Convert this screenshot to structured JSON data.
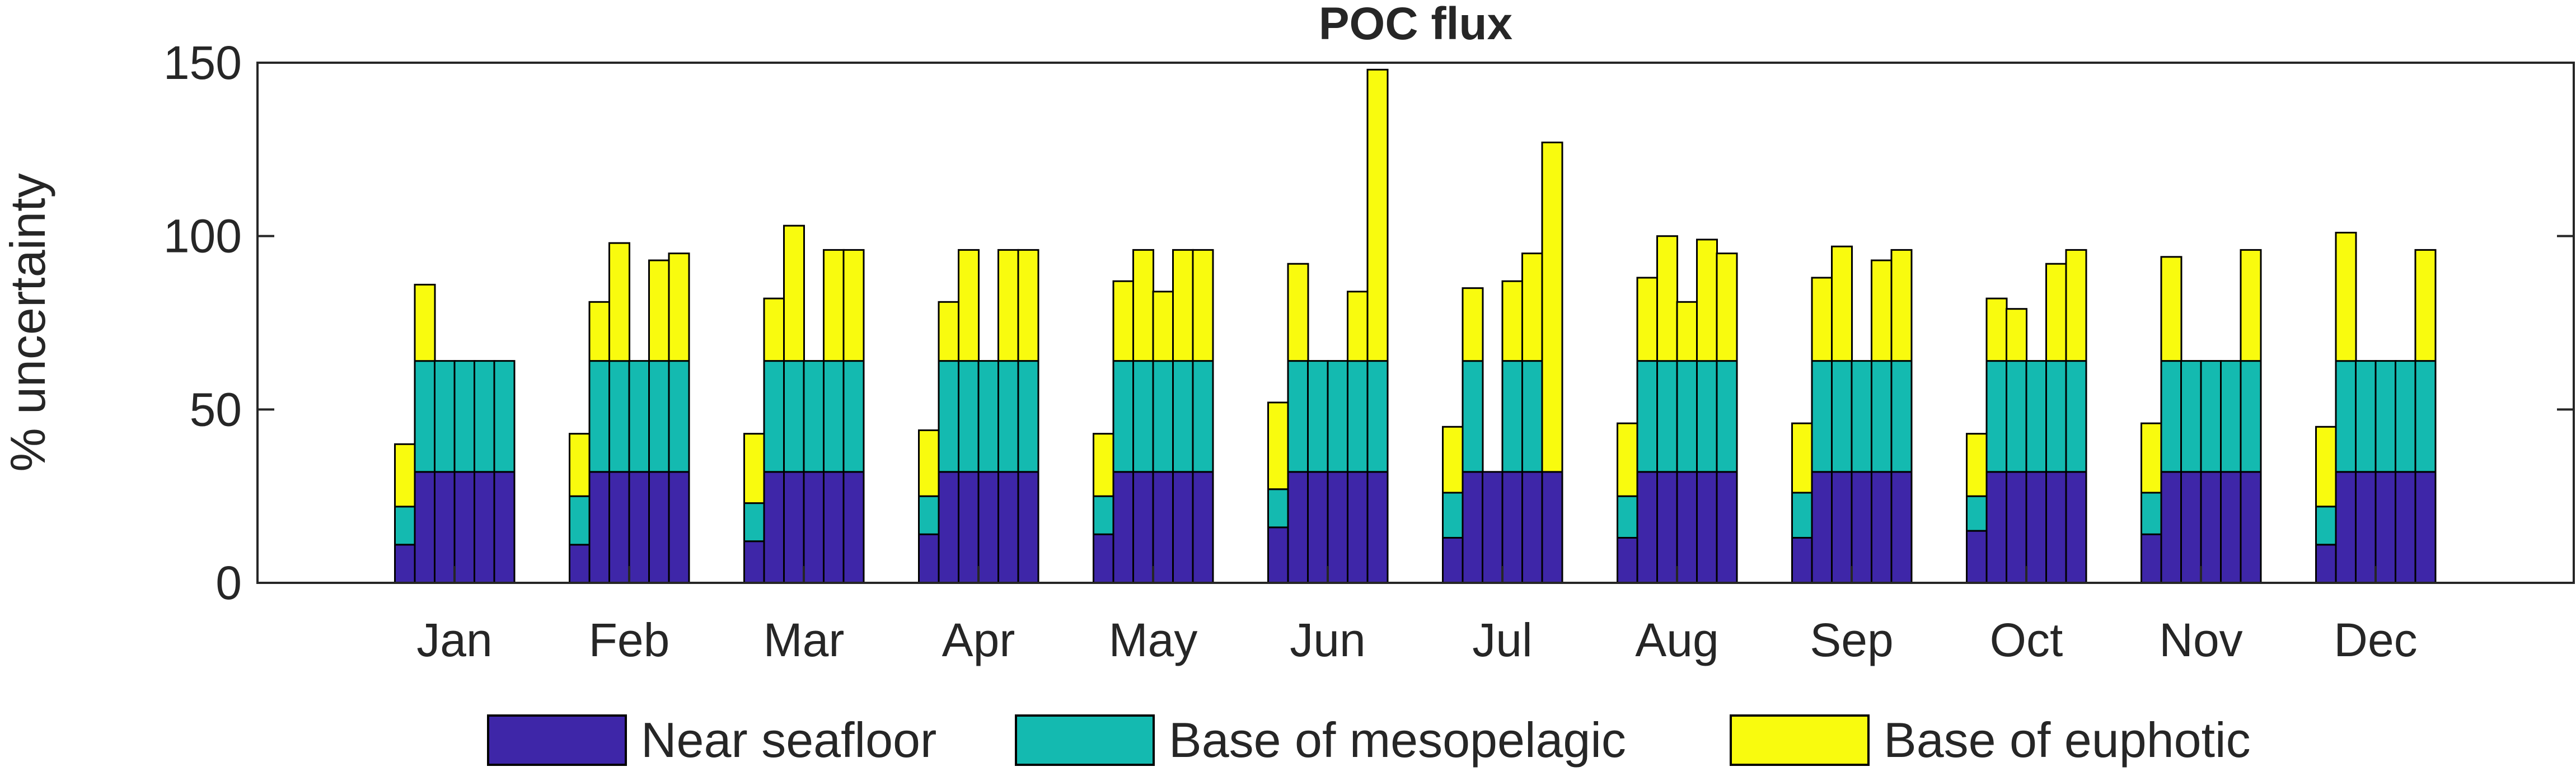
{
  "chart_data": {
    "type": "bar",
    "stacked": true,
    "title": "POC flux",
    "ylabel": "% uncertainty",
    "xlabel": "",
    "ylim": [
      0,
      150
    ],
    "yticks": [
      0,
      50,
      100,
      150
    ],
    "categories": [
      "Jan",
      "Feb",
      "Mar",
      "Apr",
      "May",
      "Jun",
      "Jul",
      "Aug",
      "Sep",
      "Oct",
      "Nov",
      "Dec"
    ],
    "bars_per_category": 6,
    "legend_position": "bottom",
    "series": [
      {
        "name": "Near seafloor",
        "color": "#3E26A8",
        "values": [
          [
            11,
            32,
            32,
            32,
            32,
            32
          ],
          [
            11,
            32,
            32,
            32,
            32,
            32
          ],
          [
            12,
            32,
            32,
            32,
            32,
            32
          ],
          [
            14,
            32,
            32,
            32,
            32,
            32
          ],
          [
            14,
            32,
            32,
            32,
            32,
            32
          ],
          [
            16,
            32,
            32,
            32,
            32,
            32
          ],
          [
            13,
            32,
            32,
            32,
            32,
            32
          ],
          [
            13,
            32,
            32,
            32,
            32,
            32
          ],
          [
            13,
            32,
            32,
            32,
            32,
            32
          ],
          [
            15,
            32,
            32,
            32,
            32,
            32
          ],
          [
            14,
            32,
            32,
            32,
            32,
            32
          ],
          [
            11,
            32,
            32,
            32,
            32,
            32
          ]
        ]
      },
      {
        "name": "Base of mesopelagic",
        "color": "#14BAB0",
        "values": [
          [
            11,
            32,
            32,
            32,
            32,
            32
          ],
          [
            14,
            32,
            32,
            32,
            32,
            32
          ],
          [
            11,
            32,
            32,
            32,
            32,
            32
          ],
          [
            11,
            32,
            32,
            32,
            32,
            32
          ],
          [
            11,
            32,
            32,
            32,
            32,
            32
          ],
          [
            11,
            32,
            32,
            32,
            32,
            32
          ],
          [
            13,
            32,
            0,
            32,
            32,
            0
          ],
          [
            12,
            32,
            32,
            32,
            32,
            32
          ],
          [
            13,
            32,
            32,
            32,
            32,
            32
          ],
          [
            10,
            32,
            32,
            32,
            32,
            32
          ],
          [
            12,
            32,
            32,
            32,
            32,
            32
          ],
          [
            11,
            32,
            32,
            32,
            32,
            32
          ]
        ]
      },
      {
        "name": "Base of euphotic",
        "color": "#F9FB0E",
        "values": [
          [
            18,
            22,
            0,
            0,
            0,
            0
          ],
          [
            18,
            17,
            34,
            0,
            29,
            31
          ],
          [
            20,
            18,
            39,
            0,
            32,
            32
          ],
          [
            19,
            17,
            32,
            0,
            32,
            32
          ],
          [
            18,
            23,
            32,
            20,
            32,
            32
          ],
          [
            25,
            28,
            0,
            0,
            20,
            84
          ],
          [
            19,
            21,
            0,
            23,
            31,
            95
          ],
          [
            21,
            24,
            36,
            17,
            35,
            31
          ],
          [
            20,
            24,
            33,
            0,
            29,
            32
          ],
          [
            18,
            18,
            15,
            0,
            28,
            32
          ],
          [
            20,
            30,
            0,
            0,
            0,
            32
          ],
          [
            23,
            37,
            0,
            0,
            0,
            32
          ]
        ]
      }
    ]
  }
}
